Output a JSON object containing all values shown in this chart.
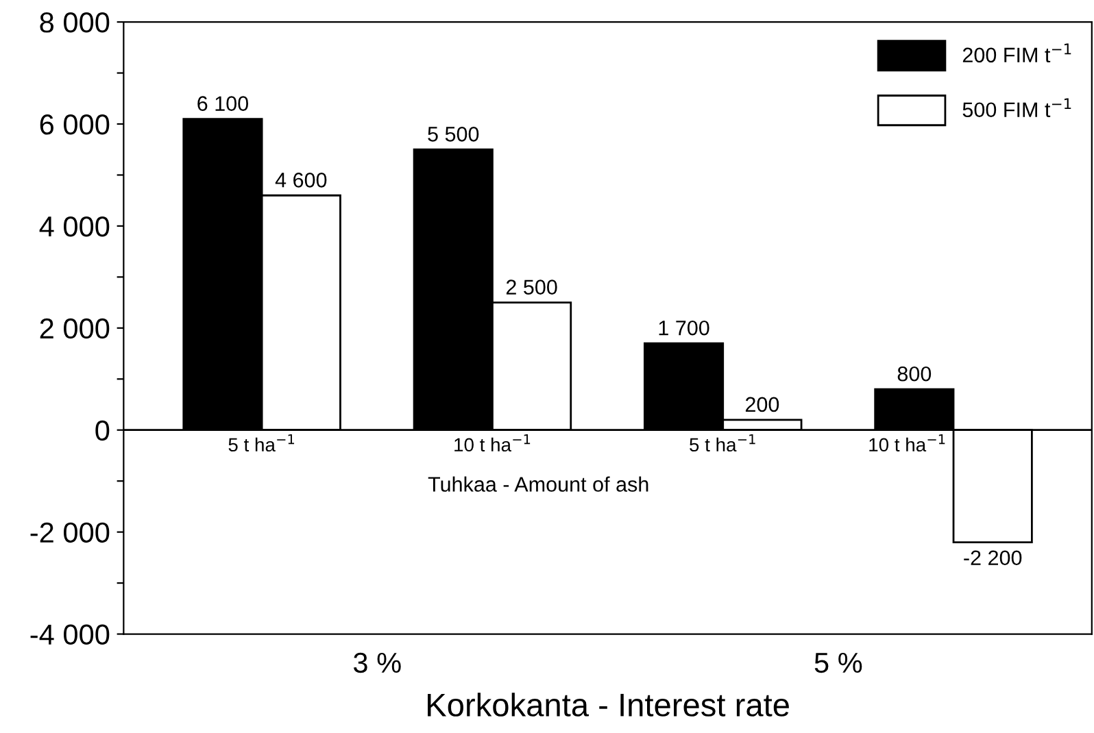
{
  "chart_data": {
    "type": "bar",
    "xlabel": "Korkokanta - Interest rate",
    "categories": [
      "5 t ha$^{−1}$",
      "10 t ha$^{−1}$",
      "5 t ha$^{−1}$",
      "10 t ha$^{−1}$"
    ],
    "series": [
      {
        "name": "200 FIM t$^{−1}$",
        "color": "#000000",
        "values": [
          6100,
          5500,
          1700,
          800
        ],
        "value_labels": [
          "6 100",
          "5 500",
          "1 700",
          "800"
        ]
      },
      {
        "name": "500 FIM t$^{−1}$",
        "color": "#ffffff",
        "values": [
          4600,
          2500,
          200,
          -2200
        ],
        "value_labels": [
          "4 600",
          "2 500",
          "200",
          "-2 200"
        ]
      }
    ],
    "ylim": [
      -4000,
      8000
    ],
    "yticks": [
      {
        "value": -4000,
        "label": "-4 000"
      },
      {
        "value": -3000,
        "label": null
      },
      {
        "value": -2000,
        "label": "-2 000"
      },
      {
        "value": -1000,
        "label": null
      },
      0,
      {
        "value": 1000,
        "label": null
      },
      {
        "value": 2000,
        "label": "2 000"
      },
      {
        "value": 3000,
        "label": null
      },
      {
        "value": 4000,
        "label": "4 000"
      },
      {
        "value": 5000,
        "label": null
      },
      {
        "value": 6000,
        "label": "6 000"
      },
      {
        "value": 7000,
        "label": null
      },
      {
        "value": 8000,
        "label": "8 000"
      }
    ],
    "annotations": [
      "Tuhkaa - Amount of ash",
      "3 %",
      "5 %"
    ],
    "grid": false,
    "legend": "top right"
  }
}
